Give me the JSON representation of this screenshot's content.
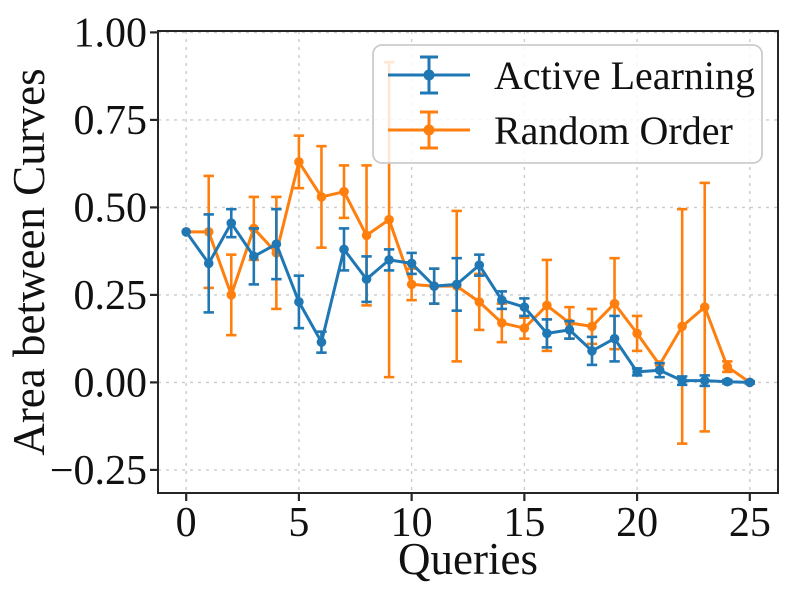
{
  "figure": {
    "background": "#ffffff"
  },
  "chart_data": {
    "type": "line",
    "title": "",
    "xlabel": "Queries",
    "ylabel": "Area between Curves",
    "grid": true,
    "grid_style": "dashed",
    "grid_color": "#cccccc",
    "spine_color": "#262626",
    "text_color": "#111111",
    "legend_position": "upper right",
    "xlim": [
      -1.25,
      26.25
    ],
    "ylim": [
      -0.316,
      1.004
    ],
    "x_ticks": [
      0,
      5,
      10,
      15,
      20,
      25
    ],
    "x_tick_labels": [
      "0",
      "5",
      "10",
      "15",
      "20",
      "25"
    ],
    "y_ticks": [
      -0.25,
      0.0,
      0.25,
      0.5,
      0.75,
      1.0
    ],
    "y_tick_labels": [
      "−0.25",
      "0.00",
      "0.25",
      "0.50",
      "0.75",
      "1.00"
    ],
    "x": [
      0,
      1,
      2,
      3,
      4,
      5,
      6,
      7,
      8,
      9,
      10,
      11,
      12,
      13,
      14,
      15,
      16,
      17,
      18,
      19,
      20,
      21,
      22,
      23,
      24,
      25
    ],
    "series": [
      {
        "name": "Active Learning",
        "color": "#1f77b4",
        "marker": "circle",
        "values": [
          0.43,
          0.34,
          0.455,
          0.36,
          0.395,
          0.23,
          0.115,
          0.38,
          0.295,
          0.35,
          0.34,
          0.275,
          0.28,
          0.335,
          0.235,
          0.215,
          0.14,
          0.15,
          0.09,
          0.125,
          0.03,
          0.035,
          0.005,
          0.005,
          0.002,
          0.0
        ],
        "errors": [
          0,
          0.14,
          0.04,
          0.08,
          0.1,
          0.075,
          0.03,
          0.06,
          0.065,
          0.03,
          0.03,
          0.05,
          0.075,
          0.03,
          0.025,
          0.025,
          0.04,
          0.025,
          0.04,
          0.065,
          0.01,
          0.02,
          0.012,
          0.015,
          0.005,
          0.003
        ]
      },
      {
        "name": "Random Order",
        "color": "#ff7f0e",
        "marker": "circle",
        "values": [
          0.43,
          0.43,
          0.25,
          0.44,
          0.37,
          0.63,
          0.53,
          0.545,
          0.42,
          0.465,
          0.28,
          0.275,
          0.275,
          0.23,
          0.17,
          0.155,
          0.22,
          0.17,
          0.16,
          0.225,
          0.14,
          0.05,
          0.16,
          0.215,
          0.045,
          0.0
        ],
        "errors": [
          0,
          0.16,
          0.115,
          0.09,
          0.16,
          0.075,
          0.145,
          0.075,
          0.2,
          0.45,
          0.045,
          0.05,
          0.215,
          0.08,
          0.055,
          0.03,
          0.13,
          0.045,
          0.05,
          0.13,
          0.05,
          0,
          0.335,
          0.355,
          0.015,
          0.003
        ]
      }
    ]
  }
}
